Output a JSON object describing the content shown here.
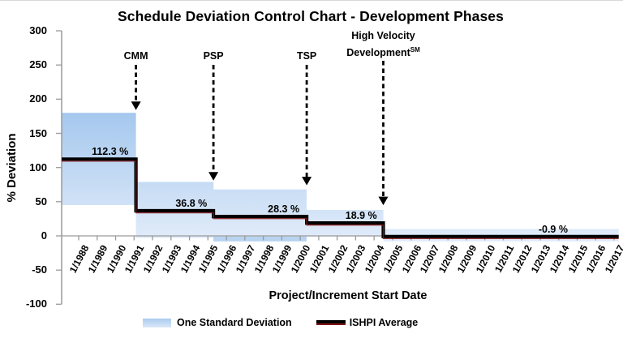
{
  "chart_data": {
    "type": "line",
    "title": "Schedule Deviation Control Chart - Development Phases",
    "xlabel": "Project/Increment Start Date",
    "ylabel": "% Deviation",
    "ylim": [
      -100,
      300
    ],
    "grid": false,
    "y_ticks": [
      "300",
      "250",
      "200",
      "150",
      "100",
      "50",
      "0",
      "-50",
      "-100"
    ],
    "y_tick_values": [
      300,
      250,
      200,
      150,
      100,
      50,
      0,
      -50,
      -100
    ],
    "x_ticks": [
      "1/1988",
      "1/1989",
      "1/1990",
      "1/1991",
      "1/1992",
      "1/1993",
      "1/1994",
      "1/1995",
      "1/1996",
      "1/1997",
      "1/1998",
      "1/1999",
      "1/2000",
      "1/2001",
      "1/2002",
      "1/2003",
      "1/2004",
      "1/2005",
      "1/2006",
      "1/2007",
      "1/2008",
      "1/2009",
      "1/2010",
      "1/2011",
      "1/2012",
      "1/2013",
      "1/2014",
      "1/2015",
      "1/2016",
      "1/2017"
    ],
    "x_tick_start_year": 1988,
    "series_name": "ISHPI Average",
    "band_name": "One Standard Deviation",
    "phases": [
      {
        "label": "112.3 %",
        "average_pct": 112.3,
        "band_high_pct": 180,
        "band_low_pct": 45,
        "start_year": 1987.08,
        "end_year": 1991.1,
        "label_x_year": 1989.7
      },
      {
        "label": "36.8 %",
        "average_pct": 36.8,
        "band_high_pct": 79,
        "band_low_pct": -3,
        "start_year": 1991.1,
        "end_year": 1995.3,
        "label_x_year": 1994.1
      },
      {
        "label": "28.3 %",
        "average_pct": 28.3,
        "band_high_pct": 68,
        "band_low_pct": -8,
        "start_year": 1995.3,
        "end_year": 2000.35,
        "label_x_year": 1999.1,
        "below_axis_shade": true
      },
      {
        "label": "18.9 %",
        "average_pct": 18.9,
        "band_high_pct": 38,
        "band_low_pct": -1,
        "start_year": 2000.35,
        "end_year": 2004.5,
        "label_x_year": 2003.3
      },
      {
        "label": "-0.9 %",
        "average_pct": -0.9,
        "band_high_pct": 10,
        "band_low_pct": -8,
        "start_year": 2004.5,
        "end_year": 2017.25,
        "label_x_year": 2013.7
      }
    ],
    "annotations": [
      {
        "lines": [
          "CMM"
        ],
        "x_year": 1991.1,
        "arrow_tip_pct": 184
      },
      {
        "lines": [
          "PSP"
        ],
        "x_year": 1995.3,
        "arrow_tip_pct": 81
      },
      {
        "lines": [
          "TSP"
        ],
        "x_year": 2000.35,
        "arrow_tip_pct": 74
      },
      {
        "lines": [
          "High Velocity",
          "Development"
        ],
        "superscript": "SM",
        "x_year": 2004.5,
        "arrow_tip_pct": 45
      }
    ],
    "legend": [
      {
        "label": "One Standard Deviation",
        "swatch": "band"
      },
      {
        "label": "ISHPI Average",
        "swatch": "line"
      }
    ],
    "colors": {
      "band_top": "#a2c6ed",
      "band_bottom": "#e3edfa",
      "band_below_axis": "#b7d3f0",
      "average_line": "#000000",
      "average_line_shadow": "#8b1a1a",
      "axis": "#9a9a9a",
      "text": "#000000"
    }
  }
}
